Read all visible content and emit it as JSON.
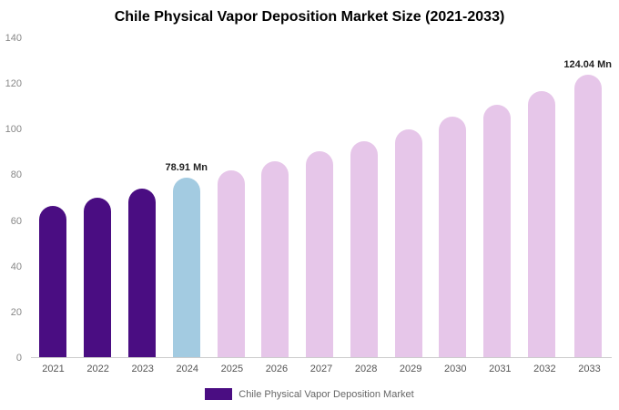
{
  "title": "Chile Physical Vapor Deposition Market Size (2021-2033)",
  "legend": {
    "label": "Chile Physical Vapor Deposition Market"
  },
  "colors": {
    "historical": "#4a0d82",
    "current": "#a3cbe1",
    "forecast": "#e6c6e9",
    "annotation_text": "#222222",
    "axis_text": "#888888",
    "axis_line": "#cccccc"
  },
  "chart_data": {
    "type": "bar",
    "title": "Chile Physical Vapor Deposition Market Size (2021-2033)",
    "xlabel": "",
    "ylabel": "",
    "ylim": [
      0,
      140
    ],
    "yticks": [
      0,
      20,
      40,
      60,
      80,
      100,
      120,
      140
    ],
    "grid": false,
    "legend_position": "bottom",
    "categories": [
      "2021",
      "2022",
      "2023",
      "2024",
      "2025",
      "2026",
      "2027",
      "2028",
      "2029",
      "2030",
      "2031",
      "2032",
      "2033"
    ],
    "values": [
      66.5,
      70,
      74,
      78.91,
      82,
      86,
      90.5,
      95,
      100,
      105.5,
      111,
      117,
      124.04
    ],
    "bar_colors": [
      "#4a0d82",
      "#4a0d82",
      "#4a0d82",
      "#a3cbe1",
      "#e6c6e9",
      "#e6c6e9",
      "#e6c6e9",
      "#e6c6e9",
      "#e6c6e9",
      "#e6c6e9",
      "#e6c6e9",
      "#e6c6e9",
      "#e6c6e9"
    ],
    "annotations": [
      {
        "category": "2024",
        "text": "78.91 Mn"
      },
      {
        "category": "2033",
        "text": "124.04 Mn"
      }
    ],
    "series": [
      {
        "name": "Chile Physical Vapor Deposition Market",
        "values": [
          66.5,
          70,
          74,
          78.91,
          82,
          86,
          90.5,
          95,
          100,
          105.5,
          111,
          117,
          124.04
        ]
      }
    ]
  }
}
